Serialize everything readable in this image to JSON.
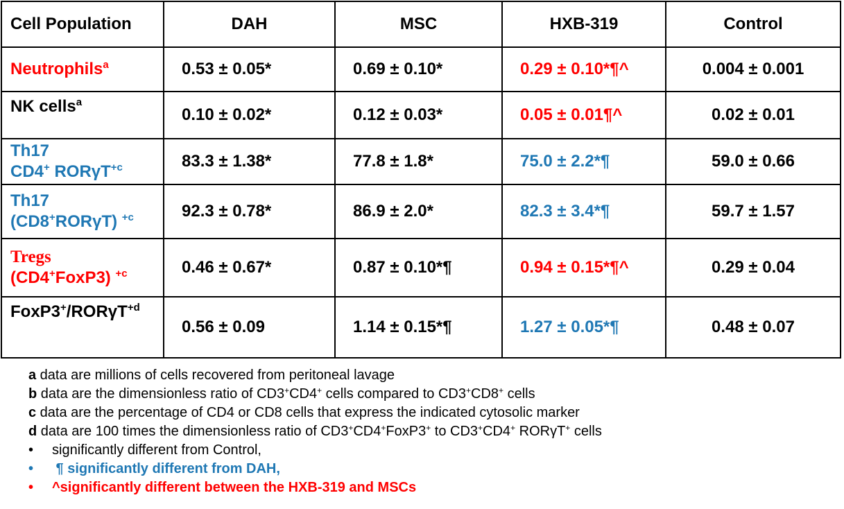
{
  "table": {
    "headers": [
      "Cell Population",
      "DAH",
      "MSC",
      "HXB-319",
      "Control"
    ],
    "rows": {
      "neutrophils": {
        "label": "Neutrophils",
        "label_sup": "a",
        "label_color": "#ff0000",
        "dah": "0.53 ± 0.05*",
        "msc": "0.69 ± 0.10*",
        "hxb": "0.29 ± 0.10*¶^",
        "hxb_color": "#ff0000",
        "control": "0.004 ± 0.001"
      },
      "nk": {
        "label": "NK cells",
        "label_sup": "a",
        "label_color": "#000000",
        "dah": "0.10 ± 0.02*",
        "msc": "0.12 ± 0.03*",
        "hxb": "0.05 ± 0.01¶^",
        "hxb_color": "#ff0000",
        "control": "0.02 ± 0.01"
      },
      "th17_cd4": {
        "label_line1": "Th17",
        "label_line2_a": "CD4",
        "label_line2_sup1": "+",
        "label_line2_b": " RORγT",
        "label_line2_sup2": "+c",
        "label_color": "#1f78b4",
        "dah": "83.3 ± 1.38*",
        "msc": "77.8 ± 1.8*",
        "hxb": "75.0 ± 2.2*¶",
        "hxb_color": "#1f78b4",
        "control": "59.0 ± 0.66"
      },
      "th17_cd8": {
        "label_line1": "Th17",
        "label_line2_a": "(CD8",
        "label_line2_sup1": "+",
        "label_line2_b": "RORγT) ",
        "label_line2_sup2": "+c",
        "label_color": "#1f78b4",
        "dah": "92.3 ± 0.78*",
        "msc": "86.9 ± 2.0*",
        "hxb": "82.3 ± 3.4*¶",
        "hxb_color": "#1f78b4",
        "control": "59.7 ± 1.57"
      },
      "tregs": {
        "label_line1": "Tregs",
        "label_line2_a": "(CD4",
        "label_line2_sup1": "+",
        "label_line2_b": "FoxP3) ",
        "label_line2_sup2": "+c",
        "label_color": "#ff0000",
        "dah": "0.46 ± 0.67*",
        "msc": "0.87 ± 0.10*¶",
        "hxb": "0.94 ± 0.15*¶^",
        "hxb_color": "#ff0000",
        "control": "0.29 ± 0.04"
      },
      "ratio": {
        "label_a": "FoxP3",
        "label_sup1": "+",
        "label_b": "/RORγT",
        "label_sup2": "+d",
        "label_color": "#000000",
        "dah": "0.56 ± 0.09",
        "msc": "1.14 ± 0.15*¶",
        "hxb": "1.27 ± 0.05*¶",
        "hxb_color": "#1f78b4",
        "control": "0.48 ± 0.07"
      }
    }
  },
  "footnotes": {
    "a": {
      "key": "a",
      "text": " data are millions  of cells recovered from peritoneal lavage"
    },
    "b": {
      "key": "b",
      "text_1": " data are the dimensionless  ratio of CD3",
      "text_2": "CD4",
      "text_3": " cells compared to  CD3",
      "text_4": "CD8",
      "text_5": " cells"
    },
    "c": {
      "key": "c",
      "text": " data are the percentage of CD4 or CD8 cells that express the indicated cytosolic marker"
    },
    "d": {
      "key": "d",
      "text_1": " data are 100 times the dimensionless  ratio of CD3",
      "text_2": "CD4",
      "text_3": "FoxP3",
      "text_4": " to CD3",
      "text_5": "CD4",
      "text_6": " RORγT",
      "text_7": " cells"
    },
    "sup_plus": "+",
    "bullet": "•",
    "star_note": "significantly different from Control,",
    "para_note": " ¶ significantly different from DAH,",
    "caret_note": "^significantly different between the HXB-319 and MSCs",
    "colors": {
      "blue": "#1f78b4",
      "red": "#ff0000"
    }
  }
}
